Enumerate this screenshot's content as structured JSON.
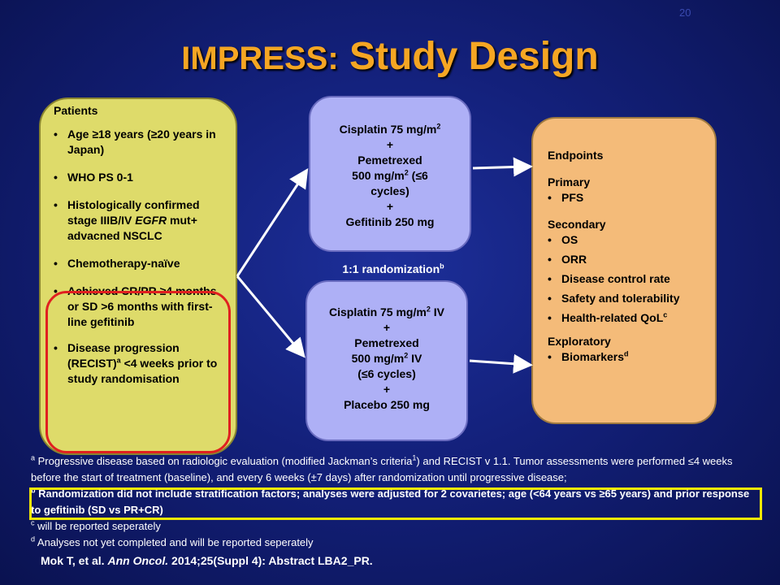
{
  "slide_number": "20",
  "title": {
    "part1": "IMPRESS",
    "colon": ":",
    "part2": " Study Design"
  },
  "patients": {
    "heading": "Patients",
    "items": [
      "Age ≥18 years (≥20 years in Japan)",
      "WHO PS 0-1",
      "Histologically confirmed stage IIIB/IV",
      "EGFR",
      " mut+ advacned NSCLC",
      "Chemotherapy-naïve",
      "Achieved CR/PR ≥4 months or SD >6 months with first-line gefitinib",
      "Disease progression (RECIST)",
      "a",
      " <4 weeks prior to study randomisation"
    ]
  },
  "arm1": {
    "line1": "Cisplatin 75 mg/m",
    "line1_sup": "2",
    "plus1": "+",
    "line2": "Pemetrexed",
    "line3": "500 mg/m",
    "line3_sup": "2",
    "line3b": " (≤6",
    "line4": "cycles)",
    "plus2": "+",
    "line5": "Gefitinib 250 mg"
  },
  "arm2": {
    "line1": "Cisplatin 75 mg/m",
    "line1_sup": "2",
    "line1b": " IV",
    "plus1": "+",
    "line2": "Pemetrexed",
    "line3": "500 mg/m",
    "line3_sup": "2",
    "line3b": " IV",
    "line4": "(≤6 cycles)",
    "plus2": "+",
    "line5": "Placebo 250 mg"
  },
  "randomization": {
    "label": "1:1 randomization",
    "sup": "b"
  },
  "endpoints": {
    "heading": "Endpoints",
    "primary_heading": "Primary",
    "primary": [
      "PFS"
    ],
    "secondary_heading": "Secondary",
    "secondary": [
      "OS",
      "ORR",
      "Disease control rate",
      "Safety and tolerability",
      "Health-related QoL"
    ],
    "qol_sup": "c",
    "exploratory_heading": "Exploratory",
    "exploratory": [
      "Biomarkers"
    ],
    "biomarkers_sup": "d"
  },
  "footnotes": {
    "a_mark": "a",
    "a_text1": " Progressive disease based on radiologic evaluation (modified Jackman’s criteria",
    "a_sup": "1",
    "a_text2": ") and RECIST v 1.1. Tumor assessments were performed ≤4 weeks before the start of treatment (baseline), and every 6 weeks (±7 days) after randomization until progressive disease;",
    "b_mark": "b",
    "b_text": " Randomization did not include stratification factors; analyses were adjusted for 2 covarietes; age (<64 years vs ≥65 years) and prior response to gefitinib (SD vs PR+CR)",
    "c_mark": "c",
    "c_text": " will be reported seperately",
    "d_mark": "d",
    "d_text": " Analyses not yet completed and will be reported seperately"
  },
  "reference": {
    "authors": "Mok T, et al. ",
    "journal": "Ann Oncol.",
    "rest": " 2014;25(Suppl 4): Abstract LBA2_PR."
  },
  "colors": {
    "title": "#f5a623",
    "patients_box": "#dedb6a",
    "arm_box": "#aeb0f6",
    "endpoints_box": "#f4bb79",
    "highlight_red": "#e02020",
    "highlight_yellow": "#f2e800"
  }
}
